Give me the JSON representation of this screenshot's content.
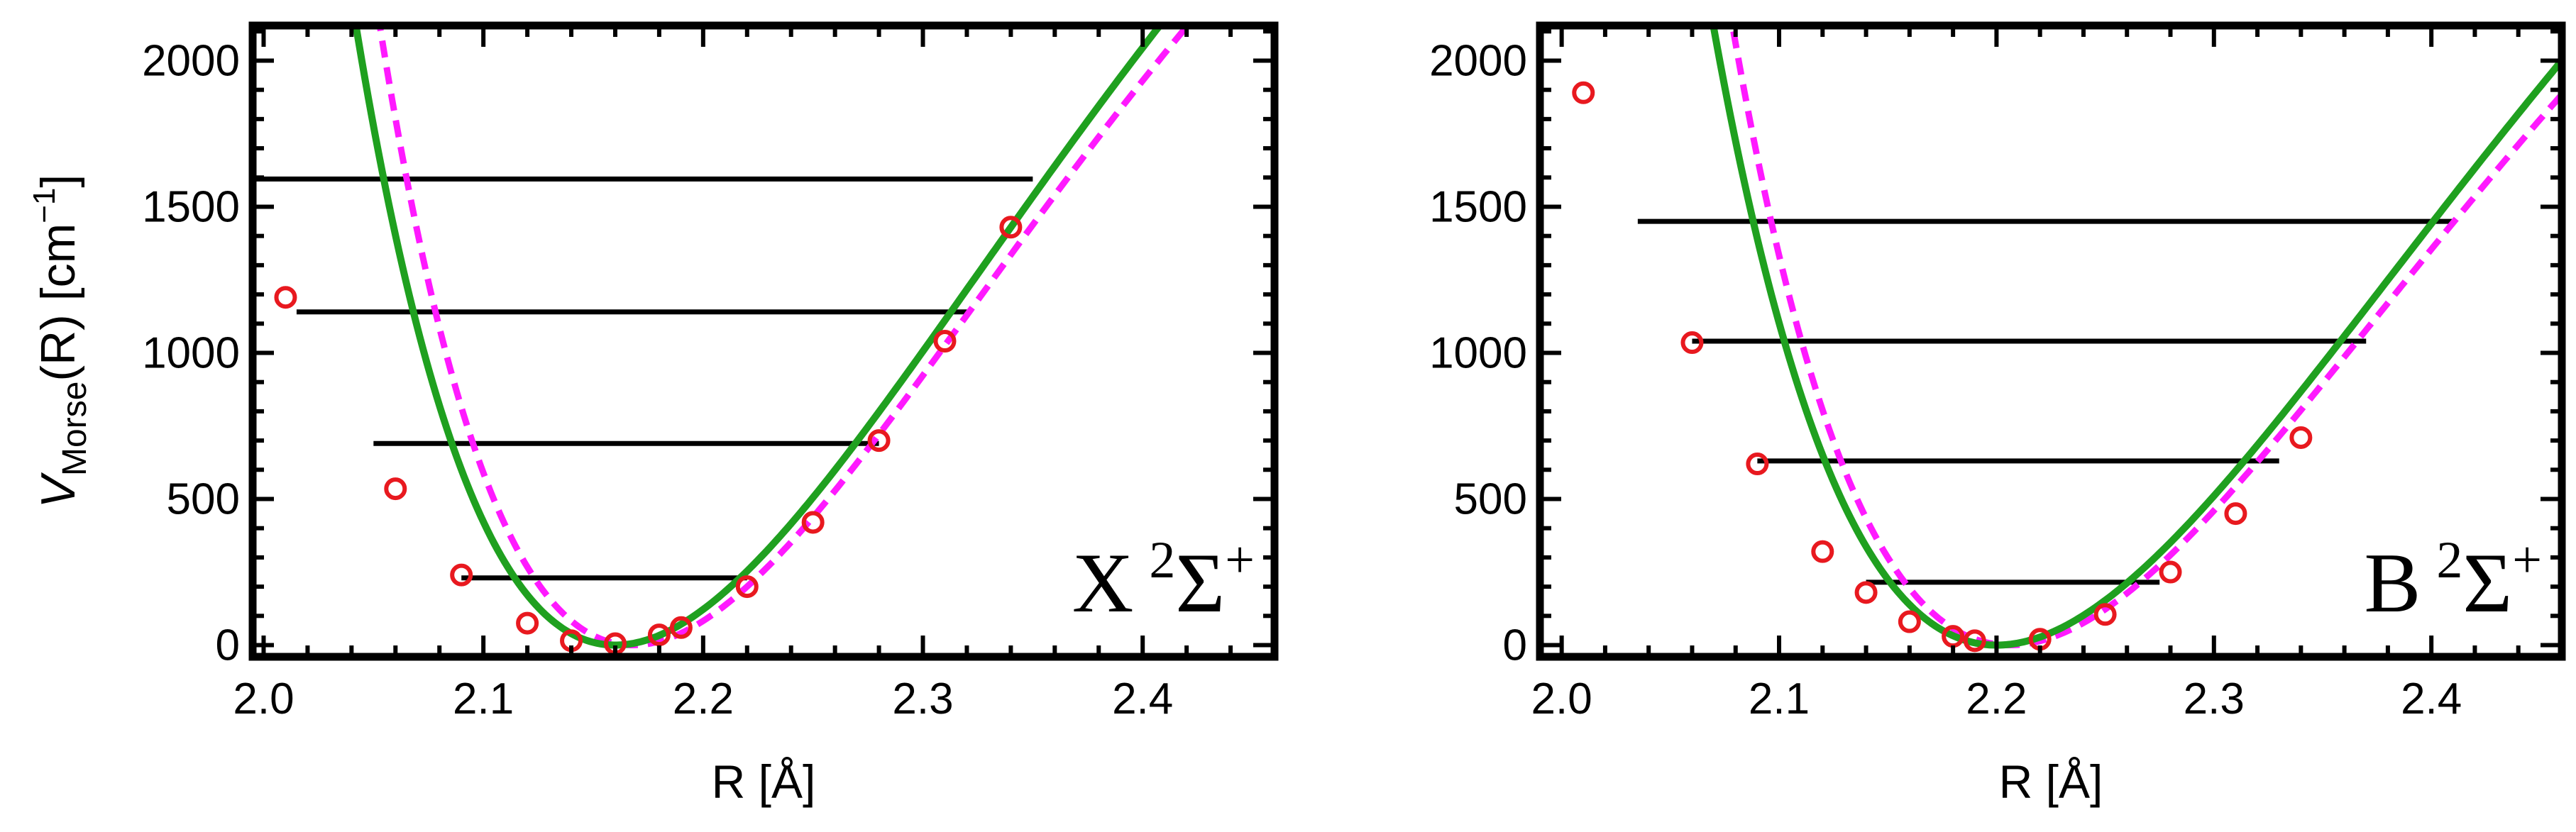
{
  "colors": {
    "fit_curve": "#1fa01f",
    "ab_initio_curve": "#ff19ff",
    "points": "#e8191f",
    "levels": "#000000",
    "frame": "#000000"
  },
  "chart_data": [
    {
      "type": "line",
      "panel_label": {
        "state": "X",
        "multiplicity": "2",
        "symbol": "Σ",
        "parity": "+"
      },
      "xlabel": "R [Å]",
      "ylabel": {
        "main": "V",
        "sub": "Morse",
        "rest": "(R) [cm",
        "sup": "−1",
        "end": "]"
      },
      "xlim": [
        1.995,
        2.46
      ],
      "ylim": [
        -40,
        2120
      ],
      "xticks": [
        2.0,
        2.1,
        2.2,
        2.3,
        2.4
      ],
      "xtick_labels": [
        "2.0",
        "2.1",
        "2.2",
        "2.3",
        "2.4"
      ],
      "yticks": [
        0,
        500,
        1000,
        1500,
        2000
      ],
      "ytick_labels": [
        "0",
        "500",
        "1000",
        "1500",
        "2000"
      ],
      "grid": false,
      "legend": "none",
      "series": [
        {
          "style": "solid",
          "color": "#1fa01f",
          "morse": {
            "De": 5000,
            "a": 4.25,
            "Re": 2.16
          }
        },
        {
          "style": "dashed",
          "color": "#ff19ff",
          "morse": {
            "De": 4600,
            "a": 4.5,
            "Re": 2.168
          }
        },
        {
          "style": "markers",
          "color": "#e8191f",
          "x": [
            2.01,
            2.06,
            2.09,
            2.12,
            2.14,
            2.16,
            2.18,
            2.19,
            2.22,
            2.25,
            2.28,
            2.31,
            2.34
          ],
          "y": [
            1190,
            535,
            240,
            75,
            15,
            5,
            35,
            60,
            200,
            420,
            700,
            1040,
            1430
          ]
        }
      ],
      "levels": [
        {
          "energy": 230,
          "x_from": 2.09,
          "x_to": 2.22
        },
        {
          "energy": 690,
          "x_from": 2.05,
          "x_to": 2.28
        },
        {
          "energy": 1140,
          "x_from": 2.015,
          "x_to": 2.32
        },
        {
          "energy": 1595,
          "x_from": 1.995,
          "x_to": 2.35
        }
      ]
    },
    {
      "type": "line",
      "panel_label": {
        "state": "B",
        "multiplicity": "2",
        "symbol": "Σ",
        "parity": "+"
      },
      "xlabel": "R [Å]",
      "ylabel": null,
      "xlim": [
        1.99,
        2.46
      ],
      "ylim": [
        -40,
        2120
      ],
      "xticks": [
        2.0,
        2.1,
        2.2,
        2.3,
        2.4
      ],
      "xtick_labels": [
        "2.0",
        "2.1",
        "2.2",
        "2.3",
        "2.4"
      ],
      "yticks": [
        0,
        500,
        1000,
        1500,
        2000
      ],
      "ytick_labels": [
        "0",
        "500",
        "1000",
        "1500",
        "2000"
      ],
      "grid": false,
      "legend": "none",
      "series": [
        {
          "style": "solid",
          "color": "#1fa01f",
          "morse": {
            "De": 5000,
            "a": 3.85,
            "Re": 2.2
          }
        },
        {
          "style": "dashed",
          "color": "#ff19ff",
          "morse": {
            "De": 4500,
            "a": 4.1,
            "Re": 2.206
          }
        },
        {
          "style": "markers",
          "color": "#e8191f",
          "x": [
            2.01,
            2.06,
            2.09,
            2.12,
            2.14,
            2.16,
            2.18,
            2.19,
            2.22,
            2.25,
            2.28,
            2.31,
            2.34
          ],
          "y": [
            1890,
            1035,
            620,
            320,
            180,
            80,
            30,
            15,
            20,
            105,
            250,
            450,
            710
          ]
        }
      ],
      "levels": [
        {
          "energy": 215,
          "x_from": 2.14,
          "x_to": 2.275
        },
        {
          "energy": 630,
          "x_from": 2.09,
          "x_to": 2.33
        },
        {
          "energy": 1040,
          "x_from": 2.06,
          "x_to": 2.37
        },
        {
          "energy": 1450,
          "x_from": 2.035,
          "x_to": 2.41
        }
      ]
    }
  ]
}
